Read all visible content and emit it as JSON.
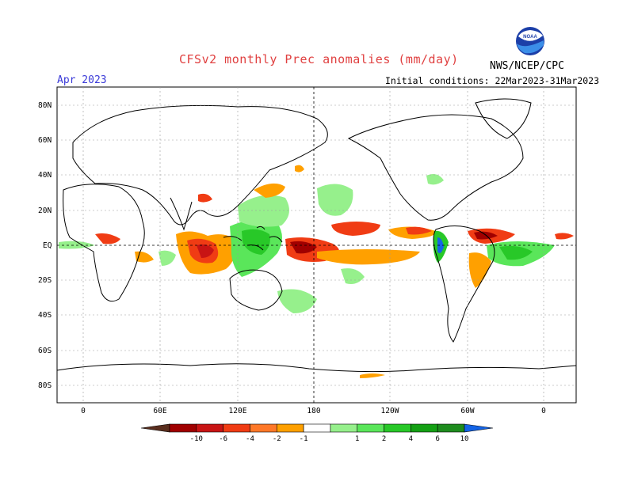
{
  "header": {
    "title": "CFSv2 monthly Prec anomalies (mm/day)",
    "month": "Apr 2023",
    "initial_conditions": "Initial conditions: 22Mar2023-31Mar2023",
    "agency": "NWS/NCEP/CPC",
    "logo_text": "NOAA"
  },
  "map": {
    "lat_labels": [
      "80N",
      "60N",
      "40N",
      "20N",
      "EQ",
      "20S",
      "40S",
      "60S",
      "80S"
    ],
    "lon_labels": [
      "0",
      "60E",
      "120E",
      "180",
      "120W",
      "60W",
      "0"
    ]
  },
  "colorbar": {
    "labels": [
      "-10",
      "-6",
      "-4",
      "-2",
      "-1",
      "1",
      "2",
      "4",
      "6",
      "10"
    ],
    "colors": [
      "#5a2e1e",
      "#a00000",
      "#c81414",
      "#f03c14",
      "#ff7828",
      "#ffa000",
      "#ffffff",
      "#96f08c",
      "#5ae65a",
      "#28c828",
      "#14a014",
      "#1e8c1e",
      "#1464e6"
    ]
  }
}
